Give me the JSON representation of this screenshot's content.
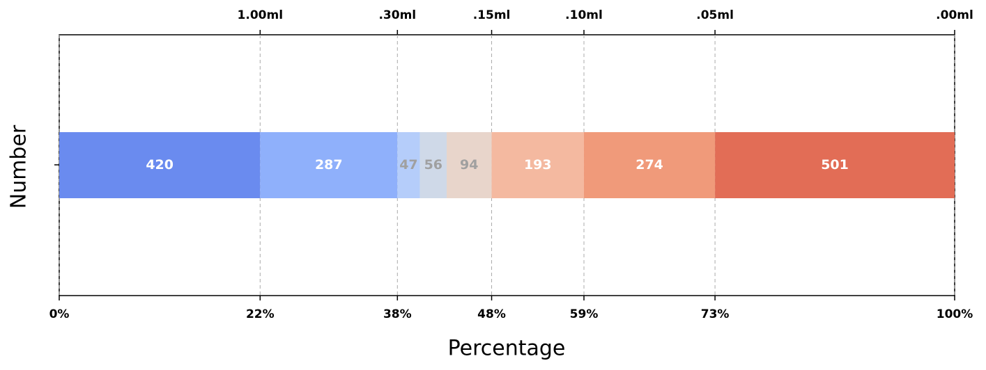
{
  "chart_data": {
    "type": "stacked-bar",
    "orientation": "horizontal",
    "xlabel": "Percentage",
    "ylabel": "Number",
    "values": [
      420,
      287,
      47,
      56,
      94,
      193,
      274,
      501
    ],
    "colors": [
      "#6a8bef",
      "#8fb0fb",
      "#b5cdfa",
      "#cfd9e8",
      "#e8d5cb",
      "#f4b9a0",
      "#f09a7a",
      "#e26d56"
    ],
    "value_label_colors": [
      "#ffffff",
      "#ffffff",
      "#a0a0a0",
      "#a0a0a0",
      "#a0a0a0",
      "#ffffff",
      "#ffffff",
      "#ffffff"
    ],
    "xlim": [
      0,
      1872
    ],
    "xticks": [
      {
        "value": 0,
        "label": "0%"
      },
      {
        "value": 420,
        "label": "22%"
      },
      {
        "value": 707,
        "label": "38%"
      },
      {
        "value": 904,
        "label": "48%"
      },
      {
        "value": 1097,
        "label": "59%"
      },
      {
        "value": 1371,
        "label": "73%"
      },
      {
        "value": 1872,
        "label": "100%"
      }
    ],
    "x2ticks": [
      {
        "value": 420,
        "label": "1.00ml"
      },
      {
        "value": 707,
        "label": ".30ml"
      },
      {
        "value": 904,
        "label": ".15ml"
      },
      {
        "value": 1097,
        "label": ".10ml"
      },
      {
        "value": 1371,
        "label": ".05ml"
      },
      {
        "value": 1872,
        "label": ".00ml"
      }
    ],
    "grid": true
  }
}
